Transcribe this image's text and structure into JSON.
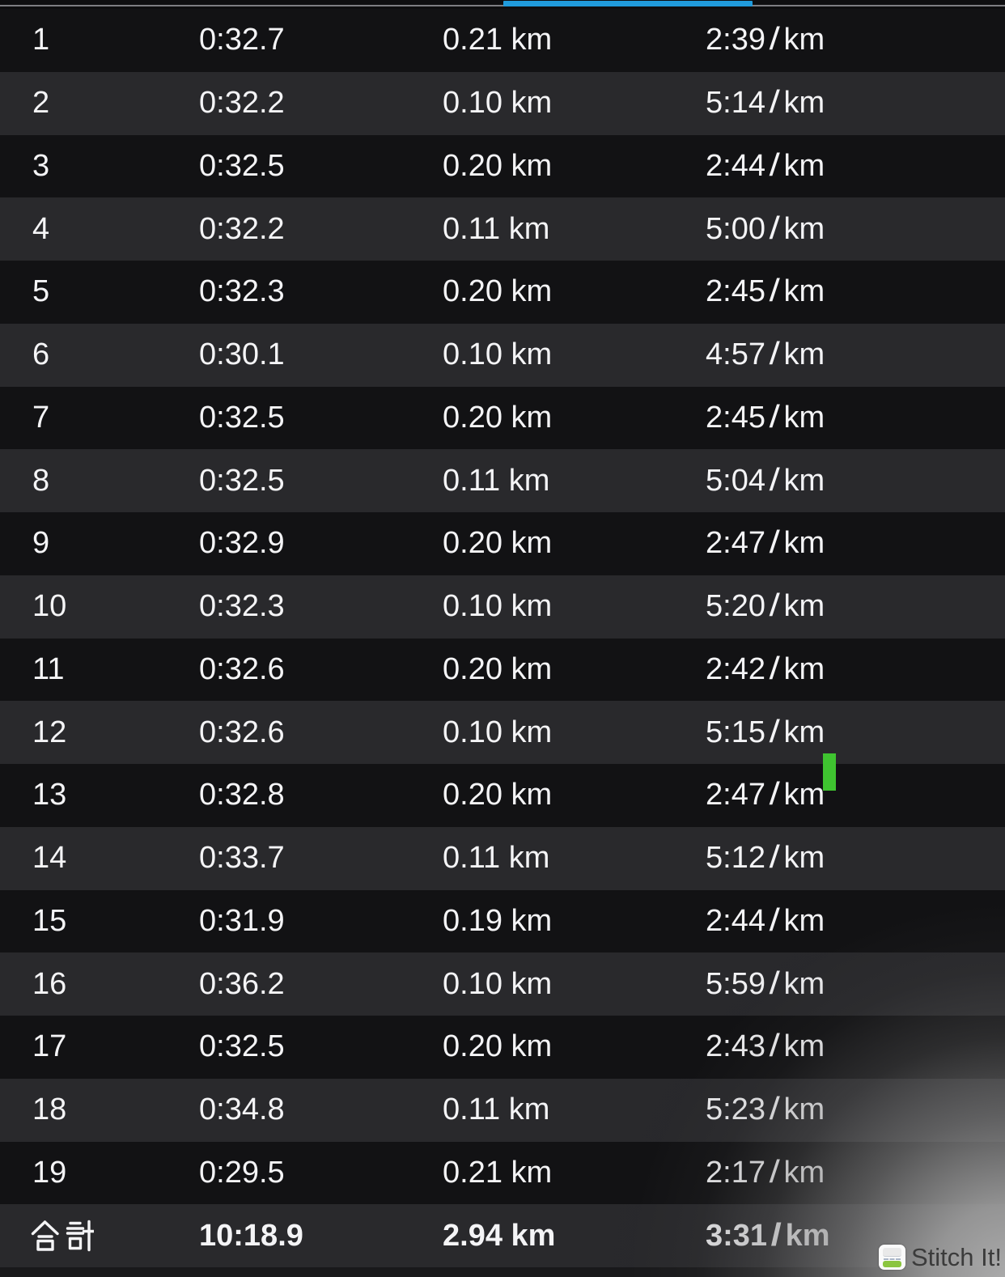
{
  "tab_indicator": {
    "color": "#209bdc"
  },
  "table": {
    "laps": [
      {
        "lap": "1",
        "time": "0:32.7",
        "distance": "0.21 km",
        "pace": "2:39／km"
      },
      {
        "lap": "2",
        "time": "0:32.2",
        "distance": "0.10 km",
        "pace": "5:14／km"
      },
      {
        "lap": "3",
        "time": "0:32.5",
        "distance": "0.20 km",
        "pace": "2:44／km"
      },
      {
        "lap": "4",
        "time": "0:32.2",
        "distance": "0.11 km",
        "pace": "5:00／km"
      },
      {
        "lap": "5",
        "time": "0:32.3",
        "distance": "0.20 km",
        "pace": "2:45／km"
      },
      {
        "lap": "6",
        "time": "0:30.1",
        "distance": "0.10 km",
        "pace": "4:57／km"
      },
      {
        "lap": "7",
        "time": "0:32.5",
        "distance": "0.20 km",
        "pace": "2:45／km"
      },
      {
        "lap": "8",
        "time": "0:32.5",
        "distance": "0.11 km",
        "pace": "5:04／km"
      },
      {
        "lap": "9",
        "time": "0:32.9",
        "distance": "0.20 km",
        "pace": "2:47／km"
      },
      {
        "lap": "10",
        "time": "0:32.3",
        "distance": "0.10 km",
        "pace": "5:20／km"
      },
      {
        "lap": "11",
        "time": "0:32.6",
        "distance": "0.20 km",
        "pace": "2:42／km"
      },
      {
        "lap": "12",
        "time": "0:32.6",
        "distance": "0.10 km",
        "pace": "5:15／km"
      },
      {
        "lap": "13",
        "time": "0:32.8",
        "distance": "0.20 km",
        "pace": "2:47／km"
      },
      {
        "lap": "14",
        "time": "0:33.7",
        "distance": "0.11 km",
        "pace": "5:12／km"
      },
      {
        "lap": "15",
        "time": "0:31.9",
        "distance": "0.19 km",
        "pace": "2:44／km"
      },
      {
        "lap": "16",
        "time": "0:36.2",
        "distance": "0.10 km",
        "pace": "5:59／km"
      },
      {
        "lap": "17",
        "time": "0:32.5",
        "distance": "0.20 km",
        "pace": "2:43／km"
      },
      {
        "lap": "18",
        "time": "0:34.8",
        "distance": "0.11 km",
        "pace": "5:23／km"
      },
      {
        "lap": "19",
        "time": "0:29.5",
        "distance": "0.21 km",
        "pace": "2:17／km"
      }
    ],
    "total": {
      "label": "合計",
      "time": "10:18.9",
      "distance": "2.94 km",
      "pace": "3:31／km"
    }
  },
  "annotations": {
    "green_marker_color": "#3fc430"
  },
  "watermark": {
    "label": "Stitch It!"
  }
}
